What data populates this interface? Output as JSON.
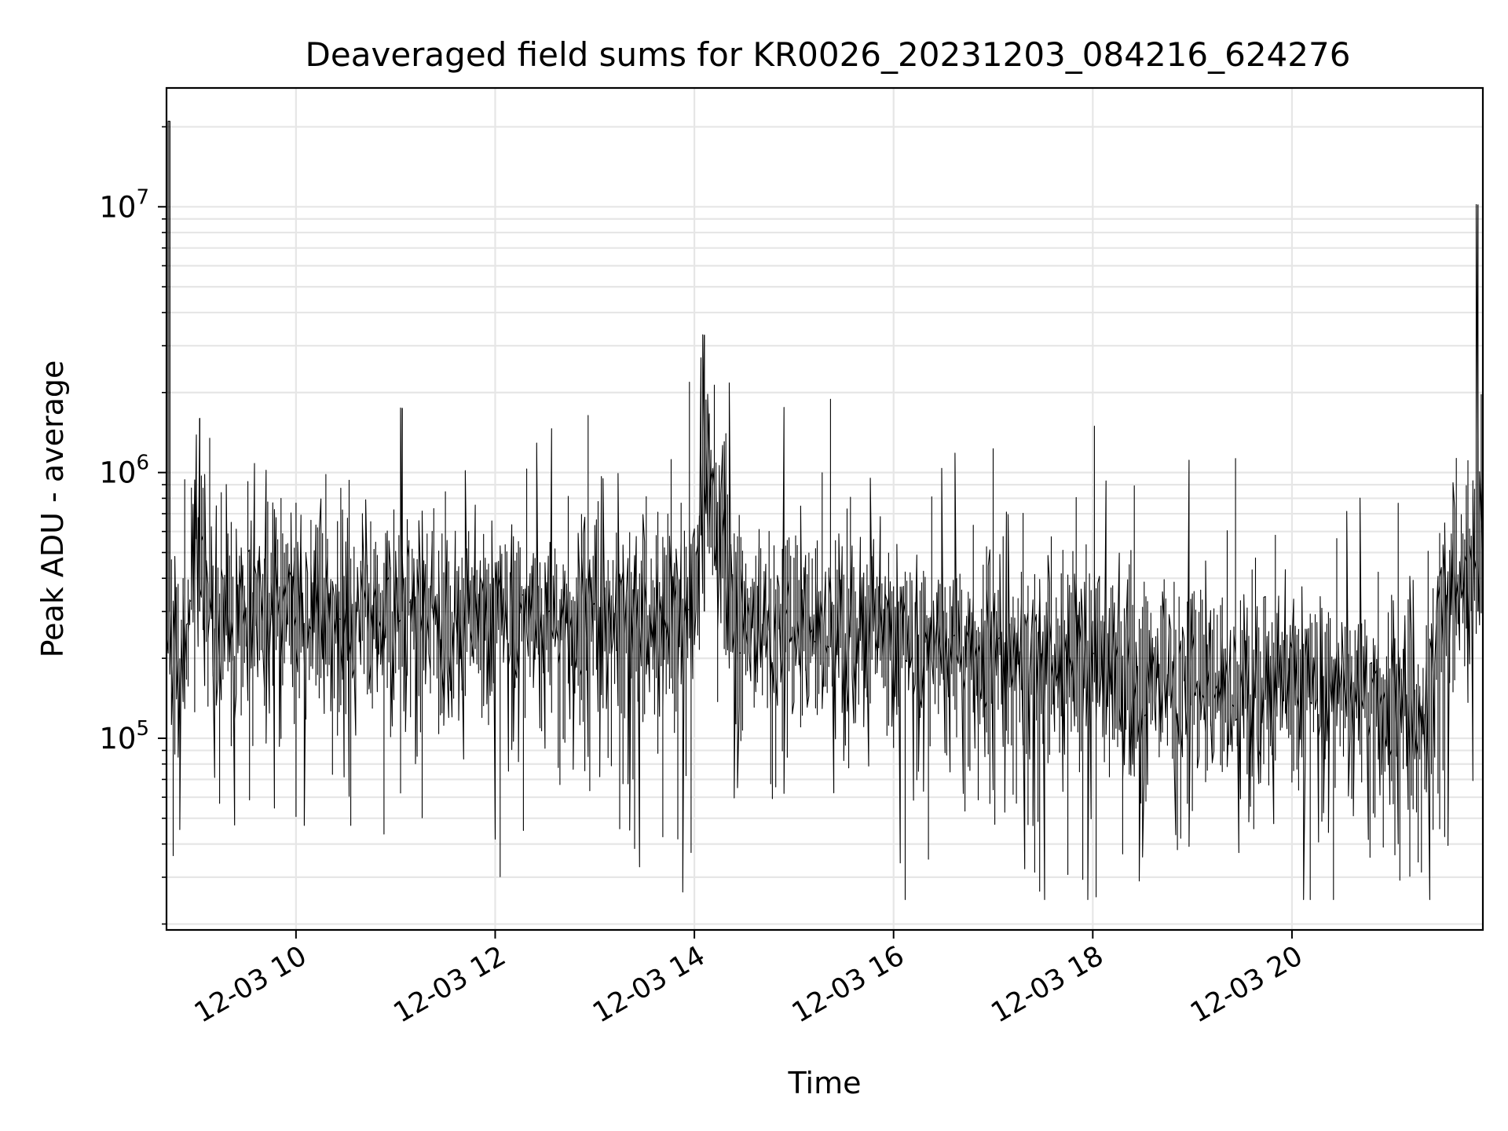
{
  "chart_data": {
    "type": "line",
    "title": "Deaveraged field sums for KR0026_20231203_084216_624276",
    "xlabel": "Time",
    "ylabel": "Peak ADU - average",
    "yscale": "log",
    "ylim": [
      19000,
      28000000
    ],
    "xlim": [
      "2023-12-03 08:42",
      "2023-12-03 21:55"
    ],
    "x_ticks": [
      {
        "value": "2023-12-03 10:00",
        "label": "12-03 10"
      },
      {
        "value": "2023-12-03 12:00",
        "label": "12-03 12"
      },
      {
        "value": "2023-12-03 14:00",
        "label": "12-03 14"
      },
      {
        "value": "2023-12-03 16:00",
        "label": "12-03 16"
      },
      {
        "value": "2023-12-03 18:00",
        "label": "12-03 18"
      },
      {
        "value": "2023-12-03 20:00",
        "label": "12-03 20"
      }
    ],
    "y_ticks": [
      {
        "value": 100000,
        "base": "10",
        "exp": "5"
      },
      {
        "value": 1000000,
        "base": "10",
        "exp": "6"
      },
      {
        "value": 10000000,
        "base": "10",
        "exp": "7"
      }
    ],
    "grid": true,
    "line_color": "#000000",
    "series": [
      {
        "x": [
          "2023-12-03 08:42",
          "2023-12-03 08:44",
          "2023-12-03 08:46",
          "2023-12-03 08:48",
          "2023-12-03 08:52",
          "2023-12-03 08:56",
          "2023-12-03 09:00",
          "2023-12-03 09:02",
          "2023-12-03 09:04",
          "2023-12-03 09:06",
          "2023-12-03 09:10",
          "2023-12-03 09:20",
          "2023-12-03 09:30",
          "2023-12-03 09:40",
          "2023-12-03 09:52",
          "2023-12-03 10:00",
          "2023-12-03 10:10",
          "2023-12-03 10:30",
          "2023-12-03 10:50",
          "2023-12-03 11:04",
          "2023-12-03 11:20",
          "2023-12-03 11:40",
          "2023-12-03 12:00",
          "2023-12-03 12:10",
          "2023-12-03 12:30",
          "2023-12-03 12:50",
          "2023-12-03 13:10",
          "2023-12-03 13:25",
          "2023-12-03 13:45",
          "2023-12-03 14:00",
          "2023-12-03 14:06",
          "2023-12-03 14:08",
          "2023-12-03 14:30",
          "2023-12-03 14:50",
          "2023-12-03 15:10",
          "2023-12-03 15:30",
          "2023-12-03 15:50",
          "2023-12-03 16:00",
          "2023-12-03 16:20",
          "2023-12-03 16:40",
          "2023-12-03 17:00",
          "2023-12-03 17:20",
          "2023-12-03 17:40",
          "2023-12-03 18:00",
          "2023-12-03 18:20",
          "2023-12-03 18:40",
          "2023-12-03 19:00",
          "2023-12-03 19:20",
          "2023-12-03 19:40",
          "2023-12-03 20:00",
          "2023-12-03 20:20",
          "2023-12-03 20:40",
          "2023-12-03 21:00",
          "2023-12-03 21:10",
          "2023-12-03 21:20",
          "2023-12-03 21:30",
          "2023-12-03 21:40",
          "2023-12-03 21:50",
          "2023-12-03 21:52",
          "2023-12-03 21:55"
        ],
        "y": [
          400000,
          21000000,
          300000,
          250000,
          220000,
          240000,
          700000,
          1600000,
          600000,
          300000,
          280000,
          290000,
          300000,
          300000,
          310000,
          300000,
          290000,
          300000,
          290000,
          1750000,
          290000,
          280000,
          280000,
          290000,
          270000,
          280000,
          280000,
          290000,
          270000,
          280000,
          3300000,
          1050000,
          280000,
          270000,
          270000,
          275000,
          260000,
          230000,
          220000,
          220000,
          210000,
          200000,
          200000,
          190000,
          190000,
          180000,
          170000,
          165000,
          160000,
          160000,
          155000,
          150000,
          140000,
          120000,
          110000,
          300000,
          400000,
          450000,
          10200000,
          480000
        ]
      }
    ]
  }
}
